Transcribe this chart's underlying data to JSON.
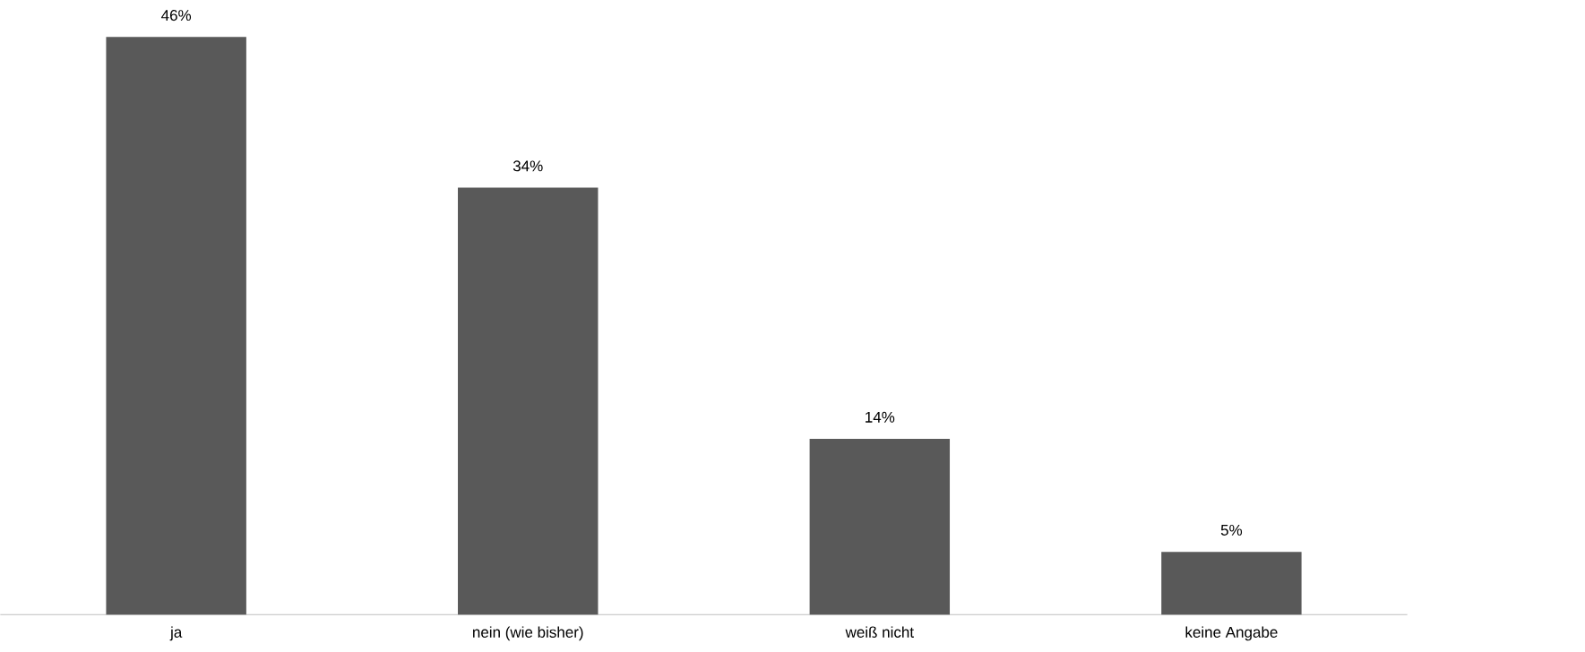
{
  "chart_data": {
    "type": "bar",
    "categories": [
      "ja",
      "nein (wie bisher)",
      "weiß nicht",
      "keine Angabe"
    ],
    "values": [
      46,
      34,
      14,
      5
    ],
    "value_labels": [
      "46%",
      "34%",
      "14%",
      "5%"
    ],
    "color": "#595959"
  }
}
